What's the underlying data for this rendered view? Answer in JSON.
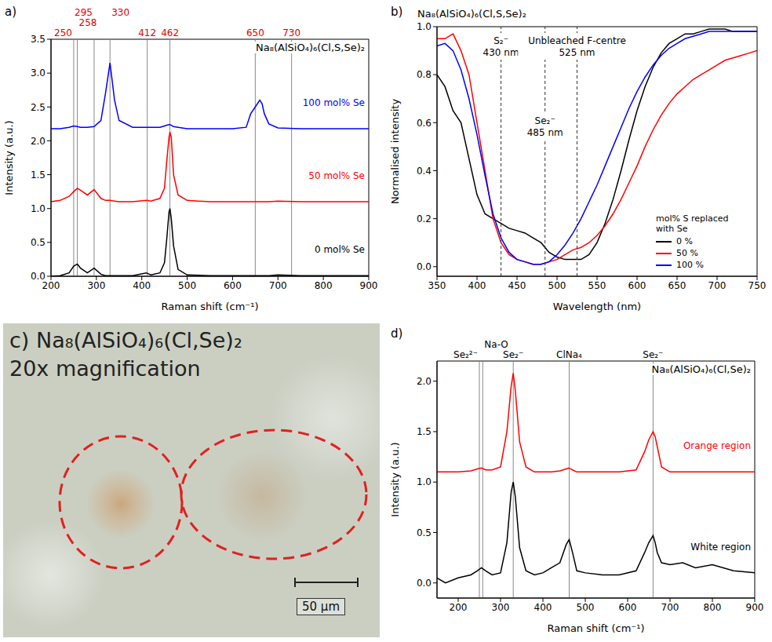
{
  "chart_data": [
    {
      "label": "a)",
      "type": "line",
      "title": "Na₈(AlSiO₄)₆(Cl,S,Se)₂",
      "x_label": "Raman shift (cm⁻¹)",
      "y_label": "Intensity (a.u.)",
      "xlim": [
        200,
        900
      ],
      "xticks": [
        200,
        300,
        400,
        500,
        600,
        700,
        800,
        900
      ],
      "ylim": [
        0,
        3.5
      ],
      "yticks": [
        {
          "value": 0,
          "label": "0.0"
        },
        0.5,
        {
          "value": 1,
          "label": "1.0"
        },
        1.5,
        {
          "value": 2,
          "label": "2.0"
        },
        2.5,
        {
          "value": 3,
          "label": "3.0"
        },
        3.5
      ],
      "grid": false,
      "reference_lines": [
        250,
        258,
        295,
        330,
        412,
        462,
        650,
        730
      ],
      "x": [
        200,
        220,
        240,
        250,
        258,
        265,
        280,
        295,
        310,
        320,
        330,
        340,
        350,
        380,
        410,
        420,
        440,
        450,
        455,
        460,
        462,
        465,
        470,
        480,
        500,
        550,
        600,
        630,
        640,
        650,
        660,
        665,
        670,
        680,
        700,
        750,
        800,
        850,
        900
      ],
      "series": [
        {
          "name": "0 mol% Se",
          "color": "#000000",
          "values": [
            0.0,
            0.01,
            0.05,
            0.15,
            0.18,
            0.12,
            0.05,
            0.12,
            0.03,
            0.01,
            0.01,
            0.01,
            0.01,
            0.01,
            0.05,
            0.02,
            0.05,
            0.2,
            0.55,
            0.95,
            1.0,
            0.85,
            0.45,
            0.1,
            0.02,
            0.01,
            0.01,
            0.01,
            0.01,
            0.01,
            0.01,
            0.01,
            0.01,
            0.01,
            0.02,
            0.01,
            0.01,
            0.01,
            0.01
          ]
        },
        {
          "name": "50 mol% Se",
          "color": "#ff0000",
          "values": [
            1.1,
            1.12,
            1.18,
            1.25,
            1.3,
            1.27,
            1.2,
            1.28,
            1.15,
            1.12,
            1.12,
            1.11,
            1.1,
            1.1,
            1.12,
            1.11,
            1.15,
            1.3,
            1.7,
            2.05,
            2.13,
            2.05,
            1.5,
            1.2,
            1.12,
            1.1,
            1.1,
            1.1,
            1.1,
            1.1,
            1.1,
            1.1,
            1.1,
            1.1,
            1.11,
            1.1,
            1.1,
            1.1,
            1.1
          ]
        },
        {
          "name": "100 mol% Se",
          "color": "#0000ff",
          "values": [
            2.18,
            2.18,
            2.2,
            2.22,
            2.21,
            2.2,
            2.2,
            2.21,
            2.3,
            2.7,
            3.15,
            2.6,
            2.3,
            2.2,
            2.2,
            2.2,
            2.2,
            2.22,
            2.23,
            2.24,
            2.24,
            2.23,
            2.21,
            2.2,
            2.18,
            2.18,
            2.18,
            2.2,
            2.4,
            2.5,
            2.6,
            2.55,
            2.4,
            2.25,
            2.19,
            2.18,
            2.18,
            2.18,
            2.18
          ]
        }
      ]
    },
    {
      "label": "b)",
      "type": "line",
      "title": "Na₈(AlSiO₄)₆(Cl,S,Se)₂",
      "x_label": "Wavelength (nm)",
      "y_label": "Normalised intensity",
      "xlim": [
        350,
        750
      ],
      "xticks": [
        350,
        400,
        450,
        500,
        550,
        600,
        650,
        700,
        750
      ],
      "ylim": [
        -0.04,
        1.0
      ],
      "yticks": [
        {
          "value": 0,
          "label": "0.0"
        },
        0.2,
        0.4,
        0.6,
        0.8,
        {
          "value": 1,
          "label": "1.0"
        }
      ],
      "grid": false,
      "legend": "lower right",
      "legend_title": "mol% S replaced with Se",
      "annotations": [
        {
          "x": 430,
          "text": [
            "S₂⁻",
            "430 nm"
          ]
        },
        {
          "x": 485,
          "text": [
            "Se₂⁻",
            "485 nm"
          ]
        },
        {
          "x": 525,
          "text": [
            "Unbleached F-centre",
            "525 nm"
          ]
        }
      ],
      "x": [
        350,
        360,
        370,
        380,
        390,
        400,
        410,
        420,
        430,
        440,
        450,
        460,
        470,
        480,
        490,
        500,
        510,
        520,
        530,
        540,
        550,
        560,
        570,
        580,
        590,
        600,
        610,
        620,
        630,
        640,
        650,
        660,
        670,
        680,
        690,
        700,
        710,
        720,
        730,
        740,
        750
      ],
      "series": [
        {
          "name": "0 %",
          "color": "#000000",
          "values": [
            0.8,
            0.75,
            0.65,
            0.6,
            0.45,
            0.3,
            0.22,
            0.2,
            0.18,
            0.16,
            0.15,
            0.14,
            0.12,
            0.1,
            0.06,
            0.04,
            0.03,
            0.03,
            0.03,
            0.05,
            0.1,
            0.18,
            0.28,
            0.4,
            0.53,
            0.65,
            0.75,
            0.83,
            0.89,
            0.93,
            0.95,
            0.97,
            0.97,
            0.98,
            0.99,
            0.99,
            0.99,
            0.98,
            0.98,
            0.98,
            0.98
          ]
        },
        {
          "name": "50 %",
          "color": "#ff0000",
          "values": [
            0.95,
            0.95,
            0.97,
            0.9,
            0.8,
            0.6,
            0.4,
            0.2,
            0.1,
            0.05,
            0.03,
            0.02,
            0.01,
            0.01,
            0.02,
            0.03,
            0.05,
            0.07,
            0.08,
            0.1,
            0.13,
            0.17,
            0.22,
            0.28,
            0.35,
            0.42,
            0.5,
            0.57,
            0.63,
            0.68,
            0.72,
            0.75,
            0.78,
            0.8,
            0.82,
            0.84,
            0.86,
            0.87,
            0.88,
            0.89,
            0.9
          ]
        },
        {
          "name": "100 %",
          "color": "#0000ff",
          "values": [
            0.92,
            0.93,
            0.9,
            0.82,
            0.7,
            0.55,
            0.38,
            0.22,
            0.12,
            0.06,
            0.03,
            0.02,
            0.01,
            0.01,
            0.02,
            0.05,
            0.09,
            0.14,
            0.2,
            0.27,
            0.34,
            0.42,
            0.5,
            0.58,
            0.66,
            0.73,
            0.79,
            0.84,
            0.88,
            0.91,
            0.93,
            0.95,
            0.96,
            0.97,
            0.98,
            0.98,
            0.98,
            0.98,
            0.98,
            0.98,
            0.98
          ]
        }
      ]
    },
    {
      "label": "d)",
      "type": "line",
      "title": "Na₈(AlSiO₄)₆(Cl,Se)₂",
      "x_label": "Raman shift (cm⁻¹)",
      "y_label": "Intensity (a.u.)",
      "xlim": [
        150,
        900
      ],
      "xticks": [
        200,
        300,
        400,
        500,
        600,
        700,
        800,
        900
      ],
      "ylim": [
        -0.15,
        2.2
      ],
      "yticks": [
        {
          "value": 0,
          "label": "0.0"
        },
        0.5,
        {
          "value": 1,
          "label": "1.0"
        },
        1.5,
        {
          "value": 2,
          "label": "2.0"
        }
      ],
      "grid": false,
      "reference_lines": [
        {
          "x": 250,
          "label": "Se₂²⁻"
        },
        {
          "x": 258,
          "label": "Na-O"
        },
        {
          "x": 330,
          "label": "Se₂⁻"
        },
        {
          "x": 462,
          "label": "ClNa₄"
        },
        {
          "x": 660,
          "label": "Se₂⁻"
        }
      ],
      "x": [
        150,
        170,
        200,
        230,
        245,
        255,
        265,
        280,
        300,
        315,
        325,
        330,
        335,
        345,
        360,
        380,
        400,
        420,
        440,
        455,
        462,
        470,
        480,
        500,
        540,
        580,
        620,
        640,
        650,
        660,
        665,
        670,
        680,
        700,
        730,
        760,
        800,
        850,
        900
      ],
      "series": [
        {
          "name": "Orange region",
          "color": "#ff0000",
          "values": [
            1.1,
            1.1,
            1.1,
            1.11,
            1.13,
            1.14,
            1.12,
            1.12,
            1.15,
            1.5,
            1.95,
            2.08,
            1.9,
            1.4,
            1.15,
            1.1,
            1.1,
            1.1,
            1.11,
            1.13,
            1.14,
            1.12,
            1.1,
            1.1,
            1.1,
            1.1,
            1.12,
            1.3,
            1.42,
            1.5,
            1.45,
            1.35,
            1.15,
            1.1,
            1.1,
            1.1,
            1.1,
            1.1,
            1.1
          ]
        },
        {
          "name": "White region",
          "color": "#000000",
          "values": [
            0.05,
            0.0,
            0.05,
            0.08,
            0.12,
            0.15,
            0.12,
            0.08,
            0.1,
            0.4,
            0.9,
            1.0,
            0.85,
            0.35,
            0.12,
            0.08,
            0.1,
            0.15,
            0.2,
            0.38,
            0.43,
            0.3,
            0.12,
            0.1,
            0.08,
            0.08,
            0.12,
            0.3,
            0.4,
            0.47,
            0.4,
            0.3,
            0.2,
            0.18,
            0.2,
            0.15,
            0.18,
            0.12,
            0.1
          ]
        }
      ]
    }
  ],
  "image_panel": {
    "label": "c)",
    "title": "Na₈(AlSiO₄)₆(Cl,Se)₂",
    "subtitle": "20x magnification",
    "scale_bar": "50 µm"
  }
}
